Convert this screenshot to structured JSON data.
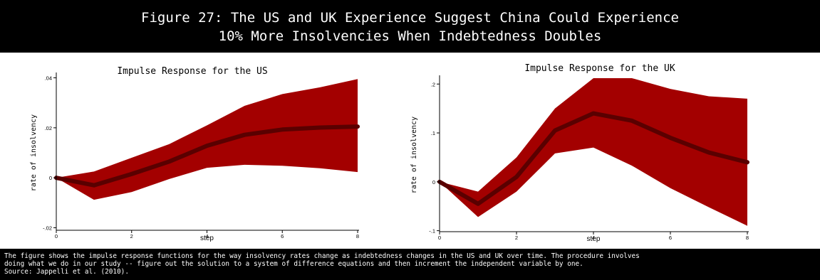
{
  "header": {
    "title_line1": "Figure 27: The US and UK Experience Suggest China Could Experience",
    "title_line2": "10% More Insolvencies When Indebtedness Doubles"
  },
  "footer": {
    "line1": "The figure shows the impulse response functions for the way insolvency rates change as indebtedness changes in the US and UK over time. The procedure involves",
    "line2": "doing what we do in our study -- figure out the solution to a system of difference equations and then increment the independent variable by one.",
    "line3": "Source: Jappelli et al. (2010)."
  },
  "colors": {
    "band": "#a30000",
    "line": "#5a0000",
    "header_bg": "#000000"
  },
  "chart_data": [
    {
      "type": "area",
      "title": "Impulse Response for the US",
      "xlabel": "step",
      "ylabel": "rate of insolvency",
      "x": [
        0,
        1,
        2,
        3,
        4,
        5,
        6,
        7,
        8
      ],
      "xticks": [
        0,
        2,
        4,
        6,
        8
      ],
      "xtick_labels": [
        "0",
        "2",
        "4",
        "6",
        "8"
      ],
      "yticks": [
        -0.02,
        0,
        0.02,
        0.04
      ],
      "ytick_labels": [
        "-.02",
        "0",
        ".02",
        ".04"
      ],
      "xlim": [
        0,
        8
      ],
      "ylim": [
        -0.021,
        0.041
      ],
      "grid": false,
      "series": [
        {
          "role": "response",
          "values": [
            0,
            -0.003,
            0.0015,
            0.0065,
            0.0128,
            0.0172,
            0.0193,
            0.0201,
            0.0205
          ]
        },
        {
          "role": "upper",
          "values": [
            0,
            0.0025,
            0.008,
            0.0135,
            0.021,
            0.0288,
            0.0335,
            0.0362,
            0.0395
          ]
        },
        {
          "role": "lower",
          "values": [
            0,
            -0.0088,
            -0.0057,
            -0.0005,
            0.004,
            0.0052,
            0.0048,
            0.0038,
            0.0023
          ]
        }
      ]
    },
    {
      "type": "area",
      "title": "Impulse Response for the UK",
      "xlabel": "step",
      "ylabel": "rate of insolvency",
      "x": [
        0,
        1,
        2,
        3,
        4,
        5,
        6,
        7,
        8
      ],
      "xticks": [
        0,
        2,
        4,
        6,
        8
      ],
      "xtick_labels": [
        "0",
        "2",
        "4",
        "6",
        "8"
      ],
      "yticks": [
        -0.1,
        0,
        0.1,
        0.2
      ],
      "ytick_labels": [
        "-.1",
        "0",
        ".1",
        ".2"
      ],
      "xlim": [
        0,
        8
      ],
      "ylim": [
        -0.102,
        0.212
      ],
      "grid": false,
      "series": [
        {
          "role": "response",
          "values": [
            0,
            -0.045,
            0.01,
            0.105,
            0.14,
            0.125,
            0.09,
            0.06,
            0.04
          ]
        },
        {
          "role": "upper",
          "values": [
            0,
            -0.02,
            0.05,
            0.15,
            0.212,
            0.212,
            0.19,
            0.175,
            0.17
          ]
        },
        {
          "role": "lower",
          "values": [
            0,
            -0.072,
            -0.02,
            0.058,
            0.07,
            0.033,
            -0.013,
            -0.052,
            -0.09
          ]
        }
      ]
    }
  ]
}
